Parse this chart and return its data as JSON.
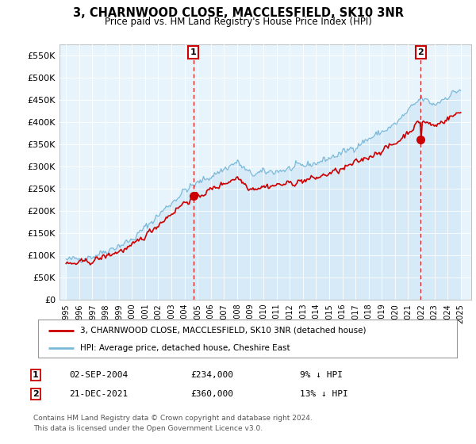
{
  "title": "3, CHARNWOOD CLOSE, MACCLESFIELD, SK10 3NR",
  "subtitle": "Price paid vs. HM Land Registry's House Price Index (HPI)",
  "legend_line1": "3, CHARNWOOD CLOSE, MACCLESFIELD, SK10 3NR (detached house)",
  "legend_line2": "HPI: Average price, detached house, Cheshire East",
  "footnote1": "Contains HM Land Registry data © Crown copyright and database right 2024.",
  "footnote2": "This data is licensed under the Open Government Licence v3.0.",
  "transaction1_date": "02-SEP-2004",
  "transaction1_price": "£234,000",
  "transaction1_hpi": "9% ↓ HPI",
  "transaction2_date": "21-DEC-2021",
  "transaction2_price": "£360,000",
  "transaction2_hpi": "13% ↓ HPI",
  "hpi_color": "#7ab8d9",
  "hpi_fill_color": "#d6eaf8",
  "price_color": "#cc0000",
  "dashed_color": "#cc0000",
  "background_color": "#ffffff",
  "plot_bg_color": "#e8f4fb",
  "grid_color": "#ffffff",
  "ylim": [
    0,
    575000
  ],
  "yticks": [
    0,
    50000,
    100000,
    150000,
    200000,
    250000,
    300000,
    350000,
    400000,
    450000,
    500000,
    550000
  ],
  "ytick_labels": [
    "£0",
    "£50K",
    "£100K",
    "£150K",
    "£200K",
    "£250K",
    "£300K",
    "£350K",
    "£400K",
    "£450K",
    "£500K",
    "£550K"
  ],
  "transaction1_x": 2004.67,
  "transaction2_x": 2021.97,
  "transaction1_y": 234000,
  "transaction2_y": 360000,
  "xlim_left": 1994.5,
  "xlim_right": 2025.8
}
